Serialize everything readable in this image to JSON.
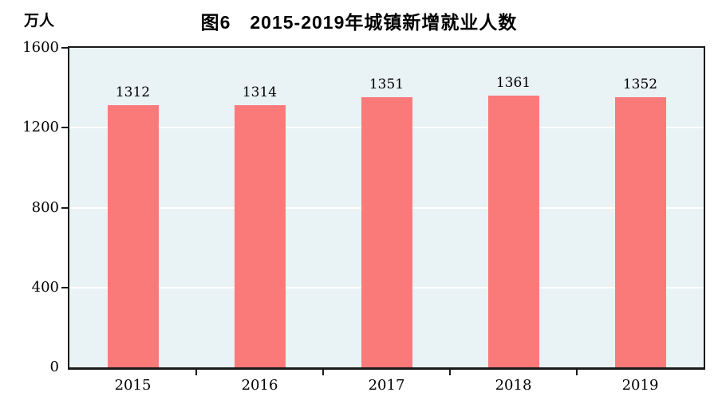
{
  "chart": {
    "title": "图6　2015-2019年城镇新增就业人数",
    "unit_label": "万人",
    "colors": {
      "bar": "#FA7A7A",
      "plot_background": "#E9F2F5",
      "axis_border": "#1a1a1a",
      "gridline": "#ffffff",
      "text": "#000000"
    }
  },
  "chart_data": {
    "type": "bar",
    "title": "图6　2015-2019年城镇新增就业人数",
    "categories": [
      "2015",
      "2016",
      "2017",
      "2018",
      "2019"
    ],
    "values": [
      1312,
      1314,
      1351,
      1361,
      1352
    ],
    "data_labels": [
      "1312",
      "1314",
      "1351",
      "1361",
      "1352"
    ],
    "xlabel": "",
    "ylabel": "万人",
    "ylim": [
      0,
      1600
    ],
    "yticks": [
      0,
      400,
      800,
      1200,
      1600
    ],
    "ytick_labels": [
      "0",
      "400",
      "800",
      "1200",
      "1600"
    ],
    "grid": true,
    "gridlines_at": [
      400,
      800,
      1200
    ],
    "legend": false
  }
}
